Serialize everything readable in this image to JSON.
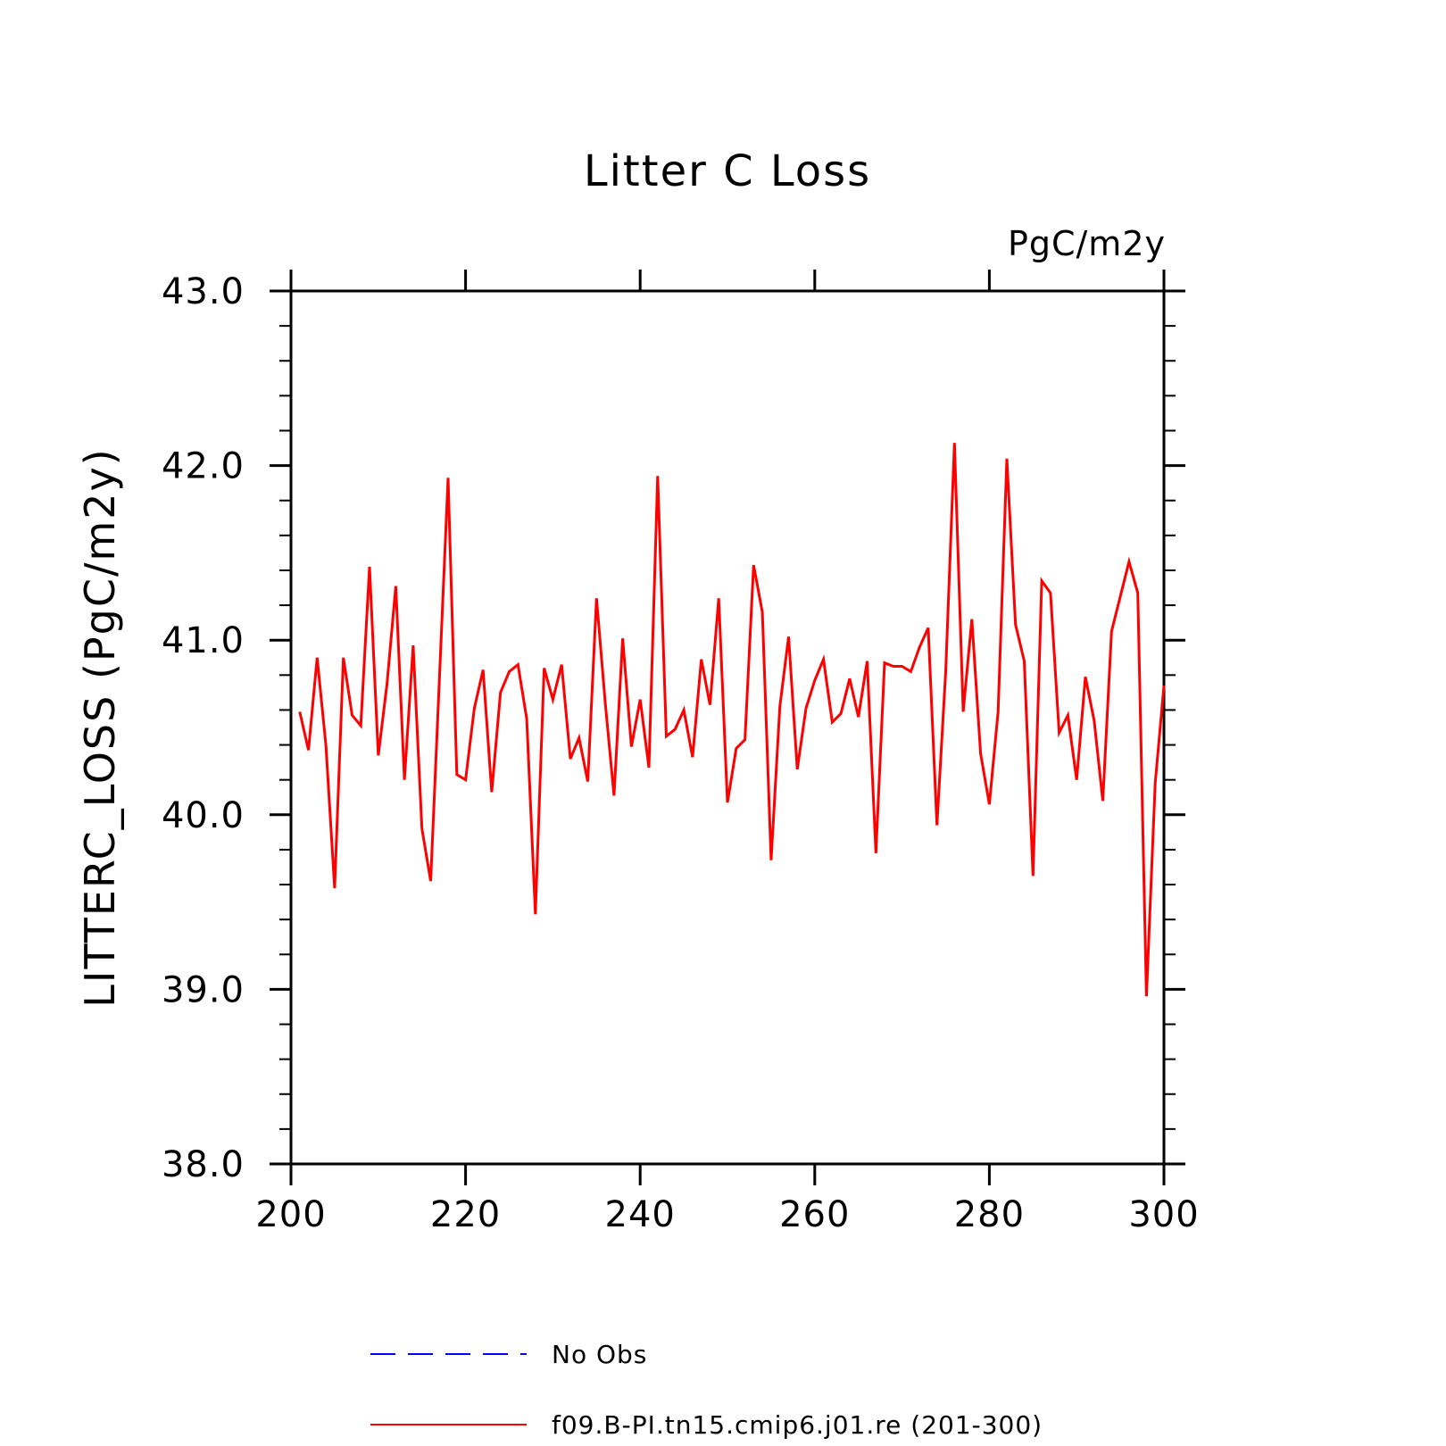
{
  "chart_data": {
    "type": "line",
    "title": "Litter C Loss",
    "units": "PgC/m2y",
    "ylabel": "LITTERC_LOSS   (PgC/m2y)",
    "xlabel": "",
    "xlim": [
      200,
      300
    ],
    "ylim": [
      38.0,
      43.0
    ],
    "xticks": [
      200,
      220,
      240,
      260,
      280,
      300
    ],
    "xtick_labels": [
      "200",
      "220",
      "240",
      "260",
      "280",
      "300"
    ],
    "yticks": [
      38.0,
      39.0,
      40.0,
      41.0,
      42.0,
      43.0
    ],
    "ytick_labels": [
      "38.0",
      "39.0",
      "40.0",
      "41.0",
      "42.0",
      "43.0"
    ],
    "x_minor_step": 20,
    "y_minor_step": 0.2,
    "grid": false,
    "legend_position": "bottom",
    "series": [
      {
        "name": "No Obs",
        "color": "#0000ff",
        "style": "dashed",
        "x": [],
        "values": []
      },
      {
        "name": "f09.B-PI.tn15.cmip6.j01.re (201-300)",
        "color": "#ff0000",
        "style": "solid",
        "x": [
          201,
          202,
          203,
          204,
          205,
          206,
          207,
          208,
          209,
          210,
          211,
          212,
          213,
          214,
          215,
          216,
          217,
          218,
          219,
          220,
          221,
          222,
          223,
          224,
          225,
          226,
          227,
          228,
          229,
          230,
          231,
          232,
          233,
          234,
          235,
          236,
          237,
          238,
          239,
          240,
          241,
          242,
          243,
          244,
          245,
          246,
          247,
          248,
          249,
          250,
          251,
          252,
          253,
          254,
          255,
          256,
          257,
          258,
          259,
          260,
          261,
          262,
          263,
          264,
          265,
          266,
          267,
          268,
          269,
          270,
          271,
          272,
          273,
          274,
          275,
          276,
          277,
          278,
          279,
          280,
          281,
          282,
          283,
          284,
          285,
          286,
          287,
          288,
          289,
          290,
          291,
          292,
          293,
          294,
          295,
          296,
          297,
          298,
          299,
          300
        ],
        "values": [
          40.59,
          40.37,
          40.9,
          40.4,
          39.58,
          40.9,
          40.57,
          40.51,
          41.42,
          40.34,
          40.75,
          41.31,
          40.2,
          40.97,
          39.92,
          39.62,
          40.78,
          41.93,
          40.23,
          40.2,
          40.61,
          40.83,
          40.13,
          40.7,
          40.82,
          40.86,
          40.55,
          39.43,
          40.84,
          40.66,
          40.86,
          40.32,
          40.44,
          40.19,
          41.24,
          40.64,
          40.11,
          41.01,
          40.39,
          40.66,
          40.27,
          41.94,
          40.45,
          40.49,
          40.6,
          40.33,
          40.89,
          40.63,
          41.24,
          40.07,
          40.38,
          40.43,
          41.43,
          41.16,
          39.74,
          40.62,
          41.02,
          40.26,
          40.61,
          40.77,
          40.89,
          40.53,
          40.58,
          40.78,
          40.56,
          40.88,
          39.78,
          40.87,
          40.85,
          40.85,
          40.82,
          40.96,
          41.07,
          39.94,
          40.82,
          42.13,
          40.59,
          41.12,
          40.35,
          40.06,
          40.59,
          42.04,
          41.09,
          40.88,
          39.65,
          41.34,
          41.27,
          40.47,
          40.57,
          40.2,
          40.79,
          40.54,
          40.08,
          41.05,
          41.25,
          41.45,
          41.27,
          38.96,
          40.18,
          40.74
        ]
      }
    ]
  }
}
